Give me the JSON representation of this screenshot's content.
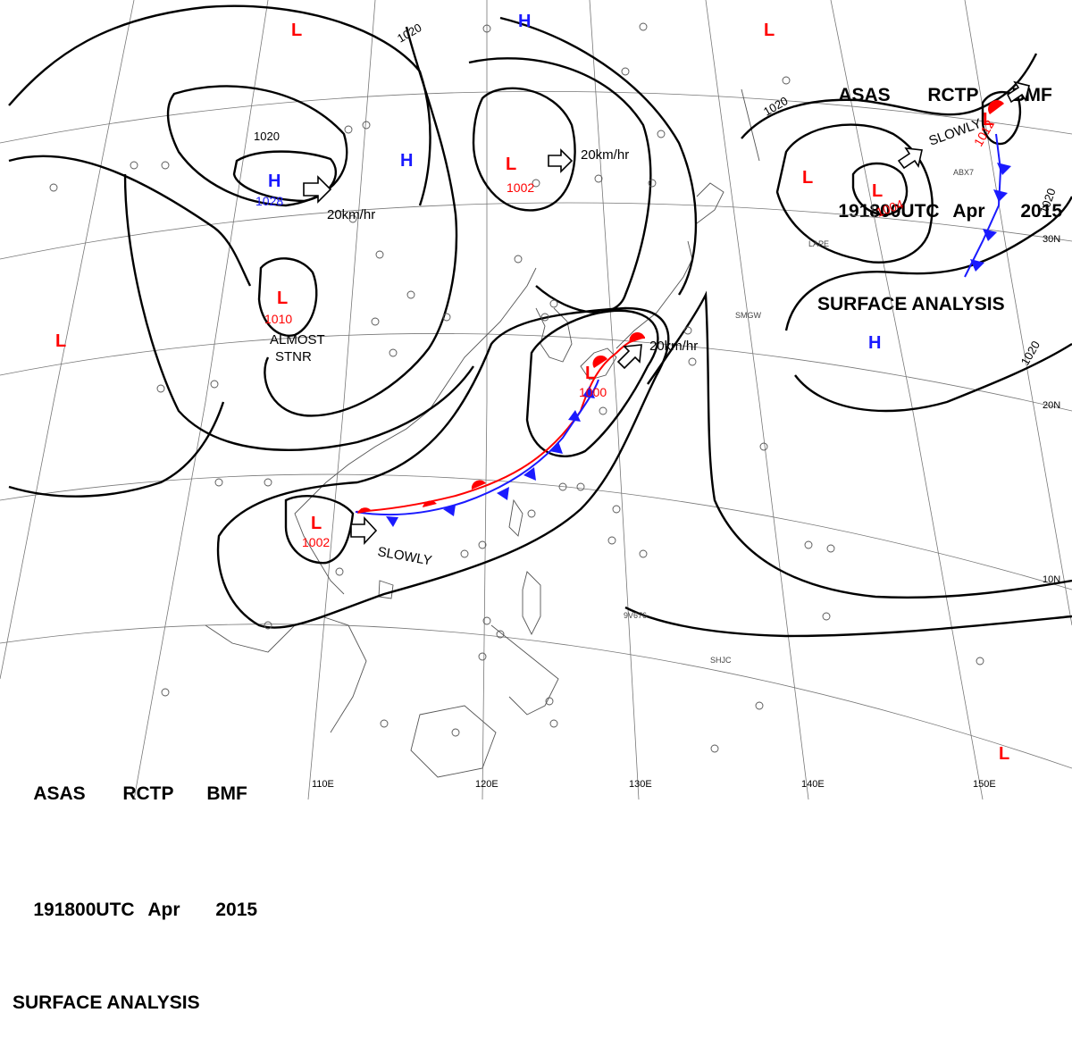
{
  "header": {
    "line1": [
      "ASAS",
      "RCTP",
      "BMF"
    ],
    "line2": [
      "191800UTC",
      "Apr",
      "2015"
    ],
    "line3": "SURFACE ANALYSIS"
  },
  "longitude_labels": [
    "110E",
    "120E",
    "130E",
    "140E",
    "150E"
  ],
  "latitude_labels": [
    "30N",
    "20N",
    "10N"
  ],
  "isobar_labels": [
    "1020",
    "1020",
    "1020",
    "1020",
    "1020"
  ],
  "pressure_centers": [
    {
      "type": "H",
      "value": "1028"
    },
    {
      "type": "H",
      "value": ""
    },
    {
      "type": "H",
      "value": ""
    },
    {
      "type": "H",
      "value": ""
    },
    {
      "type": "L",
      "value": "1002"
    },
    {
      "type": "L",
      "value": "1010"
    },
    {
      "type": "L",
      "value": "1004"
    },
    {
      "type": "L",
      "value": "1012"
    },
    {
      "type": "L",
      "value": "1000"
    },
    {
      "type": "L",
      "value": "1002"
    },
    {
      "type": "L",
      "value": ""
    },
    {
      "type": "L",
      "value": ""
    },
    {
      "type": "L",
      "value": ""
    },
    {
      "type": "L",
      "value": ""
    },
    {
      "type": "L",
      "value": ""
    }
  ],
  "movement_labels": [
    "20km/hr",
    "20km/hr",
    "20km/hr",
    "SLOWLY",
    "SLOWLY",
    "ALMOST",
    "STNR"
  ],
  "station_ids": [
    "SMGW",
    "LAPE",
    "SHJC",
    "9V676",
    "ABX7"
  ],
  "colors": {
    "isobar": "#000000",
    "high": "#1a1aff",
    "low": "#ff0000",
    "cold_front": "#1a1aff",
    "warm_front": "#ff0000",
    "grid": "#777777",
    "coast": "#555555"
  }
}
